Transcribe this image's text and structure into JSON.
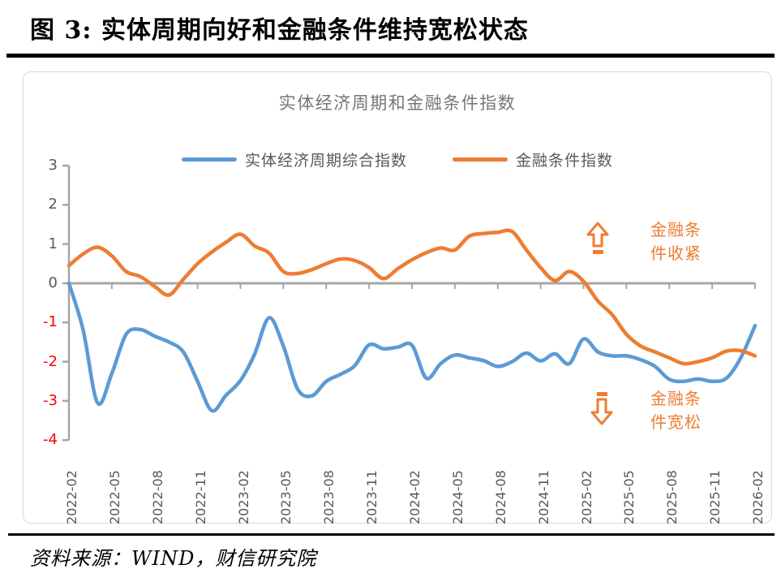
{
  "page": {
    "figure_title": "图 3: 实体周期向好和金融条件维持宽松状态",
    "source_text": "资料来源：WIND，财信研究院"
  },
  "chart": {
    "annotations": {
      "tighten": {
        "line1": "金融条",
        "line2": "件收紧",
        "icon": "up-arrow"
      },
      "loosen": {
        "line1": "金融条",
        "line2": "件宽松",
        "icon": "down-arrow"
      }
    },
    "colors": {
      "accent_orange": "#ED7D31",
      "accent_blue": "#5B9BD5",
      "axis_gray": "#A6A6A6",
      "label_gray": "#595959",
      "negative_red": "#FF0000"
    }
  },
  "chart_data": {
    "type": "line",
    "title": "实体经济周期和金融条件指数",
    "x": [
      "2022-02",
      "2022-03",
      "2022-04",
      "2022-05",
      "2022-06",
      "2022-07",
      "2022-08",
      "2022-09",
      "2022-10",
      "2022-11",
      "2022-12",
      "2023-01",
      "2023-02",
      "2023-03",
      "2023-04",
      "2023-05",
      "2023-06",
      "2023-07",
      "2023-08",
      "2023-09",
      "2023-10",
      "2023-11",
      "2023-12",
      "2024-01",
      "2024-02",
      "2024-03",
      "2024-04",
      "2024-05",
      "2024-06",
      "2024-07",
      "2024-08",
      "2024-09",
      "2024-10",
      "2024-11",
      "2024-12",
      "2025-01",
      "2025-02",
      "2025-03",
      "2025-04",
      "2025-05",
      "2025-06",
      "2025-07",
      "2025-08",
      "2025-09",
      "2025-10",
      "2025-11",
      "2025-12",
      "2026-01",
      "2026-02"
    ],
    "x_tick_labels": [
      "2022-02",
      "2022-05",
      "2022-08",
      "2022-11",
      "2023-02",
      "2023-05",
      "2023-08",
      "2023-11",
      "2024-02",
      "2024-05",
      "2024-08",
      "2024-11",
      "2025-02",
      "2025-05",
      "2025-08",
      "2025-11",
      "2026-02"
    ],
    "series": [
      {
        "name": "实体经济周期综合指数",
        "color": "#5B9BD5",
        "values": [
          0.0,
          -1.2,
          -3.05,
          -2.3,
          -1.3,
          -1.18,
          -1.35,
          -1.5,
          -1.75,
          -2.5,
          -3.25,
          -2.85,
          -2.48,
          -1.8,
          -0.88,
          -1.6,
          -2.7,
          -2.87,
          -2.5,
          -2.32,
          -2.1,
          -1.57,
          -1.67,
          -1.63,
          -1.58,
          -2.42,
          -2.05,
          -1.83,
          -1.9,
          -1.97,
          -2.12,
          -2.0,
          -1.78,
          -1.98,
          -1.8,
          -2.05,
          -1.42,
          -1.75,
          -1.85,
          -1.85,
          -1.95,
          -2.12,
          -2.45,
          -2.5,
          -2.44,
          -2.5,
          -2.42,
          -1.9,
          -1.08
        ]
      },
      {
        "name": "金融条件指数",
        "color": "#ED7D31",
        "values": [
          0.45,
          0.75,
          0.92,
          0.7,
          0.3,
          0.17,
          -0.08,
          -0.3,
          0.1,
          0.5,
          0.8,
          1.05,
          1.25,
          0.95,
          0.77,
          0.3,
          0.25,
          0.35,
          0.5,
          0.62,
          0.58,
          0.4,
          0.12,
          0.37,
          0.6,
          0.78,
          0.9,
          0.85,
          1.2,
          1.27,
          1.3,
          1.32,
          0.85,
          0.4,
          0.07,
          0.3,
          0.05,
          -0.45,
          -0.8,
          -1.3,
          -1.6,
          -1.75,
          -1.9,
          -2.05,
          -2.0,
          -1.9,
          -1.73,
          -1.72,
          -1.85
        ]
      }
    ],
    "ylim": [
      -4,
      3
    ],
    "y_ticks": [
      3,
      2,
      1,
      0,
      -1,
      -2,
      -3,
      -4
    ],
    "grid": false,
    "legend_position": "top",
    "xlabel": "",
    "ylabel": ""
  }
}
